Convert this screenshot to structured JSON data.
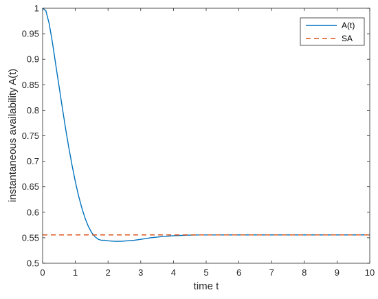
{
  "chart_data": {
    "type": "line",
    "xlabel": "time t",
    "ylabel": "instantaneous availability A(t)",
    "xlim": [
      0,
      10
    ],
    "ylim": [
      0.5,
      1
    ],
    "xticks": [
      0,
      1,
      2,
      3,
      4,
      5,
      6,
      7,
      8,
      9,
      10
    ],
    "yticks": [
      0.5,
      0.55,
      0.6,
      0.65,
      0.7,
      0.75,
      0.8,
      0.85,
      0.9,
      0.95,
      1
    ],
    "xtick_labels": [
      "0",
      "1",
      "2",
      "3",
      "4",
      "5",
      "6",
      "7",
      "8",
      "9",
      "10"
    ],
    "ytick_labels": [
      "0.5",
      "0.55",
      "0.6",
      "0.65",
      "0.7",
      "0.75",
      "0.8",
      "0.85",
      "0.9",
      "0.95",
      "1"
    ],
    "grid": false,
    "legend_position": "top-right",
    "series": [
      {
        "name": "A(t)",
        "style": "solid",
        "color": "#0072BD",
        "x": [
          0,
          0.1,
          0.2,
          0.3,
          0.4,
          0.5,
          0.6,
          0.7,
          0.8,
          0.9,
          1.0,
          1.1,
          1.2,
          1.3,
          1.4,
          1.5,
          1.6,
          1.7,
          1.8,
          1.9,
          2.0,
          2.2,
          2.4,
          2.6,
          2.8,
          3.0,
          3.3,
          3.6,
          4.0,
          4.4,
          4.8,
          5.2,
          6.0,
          7.0,
          8.0,
          9.0,
          10.0
        ],
        "y": [
          1.0,
          0.995,
          0.97,
          0.933,
          0.89,
          0.848,
          0.806,
          0.765,
          0.727,
          0.692,
          0.66,
          0.632,
          0.608,
          0.588,
          0.572,
          0.56,
          0.552,
          0.547,
          0.545,
          0.545,
          0.544,
          0.543,
          0.543,
          0.544,
          0.545,
          0.547,
          0.55,
          0.552,
          0.554,
          0.555,
          0.5555,
          0.5555,
          0.5556,
          0.5556,
          0.5556,
          0.5556,
          0.5556
        ]
      },
      {
        "name": "SA",
        "style": "dashed",
        "color": "#D95319",
        "x": [
          0,
          10
        ],
        "y": [
          0.5556,
          0.5556
        ]
      }
    ]
  }
}
